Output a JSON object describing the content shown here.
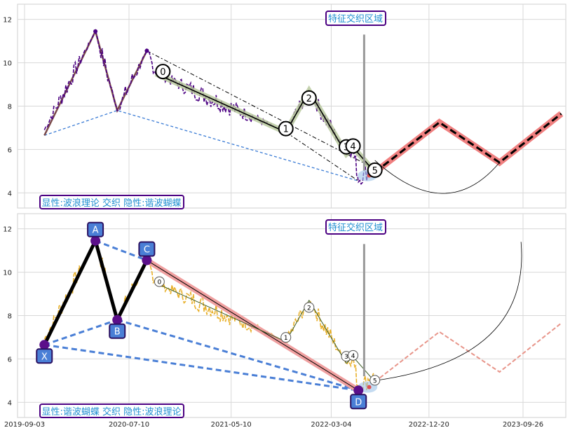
{
  "chart_data": [
    {
      "type": "line",
      "panel": "top",
      "title": "",
      "title_box": "特征交织区域",
      "caption": "显性:波浪理论 交织 隐性:谐波蝴蝶",
      "ylim": [
        3.3,
        12.7
      ],
      "yticks": [
        4,
        6,
        8,
        10,
        12
      ],
      "grid": true,
      "price_color": "#4b0082",
      "zigzag_swing_tops": [
        {
          "x": "2020-04-01",
          "y": 11.45
        },
        {
          "x": "2020-09-01",
          "y": 10.55
        }
      ],
      "zigzag_swing_lows": [
        {
          "x": "2019-11-01",
          "y": 6.65
        },
        {
          "x": "2020-06-05",
          "y": 7.8
        },
        {
          "x": "2022-05-24",
          "y": 4.55
        }
      ],
      "wave_points": [
        {
          "label": "0",
          "x": "2020-09-28",
          "y": 9.5
        },
        {
          "label": "1",
          "x": "2021-10-20",
          "y": 6.8
        },
        {
          "label": "2",
          "x": "2021-12-28",
          "y": 8.7
        },
        {
          "label": "3",
          "x": "2022-04-18",
          "y": 5.8
        },
        {
          "label": "4",
          "x": "2022-05-08",
          "y": 6.1
        },
        {
          "label": "5",
          "x": "2022-07-12",
          "y": 4.95
        }
      ],
      "projection": [
        {
          "x": "2022-07-12",
          "y": 4.95
        },
        {
          "x": "2023-01-20",
          "y": 7.25
        },
        {
          "x": "2023-07-18",
          "y": 5.4
        },
        {
          "x": "2024-01-18",
          "y": 7.65
        }
      ],
      "colors": {
        "wave": "#000000",
        "wave_band": "#b5c79a",
        "projection_band": "#f08080",
        "projection_line": "#000000",
        "channel": "#000000",
        "lows_line": "#3a7bd5",
        "highs_line": "#7a4a4a",
        "title_border": "#4b0082",
        "title_text": "#1f8fd1"
      }
    },
    {
      "type": "line",
      "panel": "bottom",
      "title": "",
      "title_box": "特征交织区域",
      "caption": "显性:谐波蝴蝶 交织 隐性:波浪理论",
      "ylim": [
        3.3,
        12.7
      ],
      "yticks": [
        4,
        6,
        8,
        10,
        12
      ],
      "grid": true,
      "price_color": "#e8b02a",
      "xticks": [
        "2019-09-03",
        "2020-07-10",
        "2021-05-10",
        "2022-03-04",
        "2022-12-20",
        "2023-09-26"
      ],
      "harmonic_points": [
        {
          "label": "X",
          "x": "2019-11-01",
          "y": 6.65
        },
        {
          "label": "A",
          "x": "2020-04-01",
          "y": 11.45
        },
        {
          "label": "B",
          "x": "2020-06-05",
          "y": 7.8
        },
        {
          "label": "C",
          "x": "2020-09-01",
          "y": 10.55
        },
        {
          "label": "D",
          "x": "2022-05-24",
          "y": 4.55
        }
      ],
      "wave_points": [
        {
          "label": "0",
          "x": "2020-09-28",
          "y": 9.5
        },
        {
          "label": "1",
          "x": "2021-10-20",
          "y": 6.8
        },
        {
          "label": "2",
          "x": "2021-12-28",
          "y": 8.7
        },
        {
          "label": "3",
          "x": "2022-04-18",
          "y": 5.8
        },
        {
          "label": "4",
          "x": "2022-05-08",
          "y": 6.1
        },
        {
          "label": "5",
          "x": "2022-07-12",
          "y": 4.95
        }
      ],
      "projection": [
        {
          "x": "2022-07-12",
          "y": 4.95
        },
        {
          "x": "2023-01-20",
          "y": 7.25
        },
        {
          "x": "2023-07-18",
          "y": 5.4
        },
        {
          "x": "2024-01-18",
          "y": 7.65
        }
      ],
      "colors": {
        "harmonic_fill": "#4a7fd6",
        "harmonic_line": "#000000",
        "harmonic_dash": "#4a7fd6",
        "harmonic_node": "#5b0f8a",
        "cd_band": "#f0a0a0",
        "wave_line": "#000000",
        "projection": "#e8958a",
        "title_border": "#4b0082",
        "title_text": "#1f8fd1"
      }
    }
  ]
}
